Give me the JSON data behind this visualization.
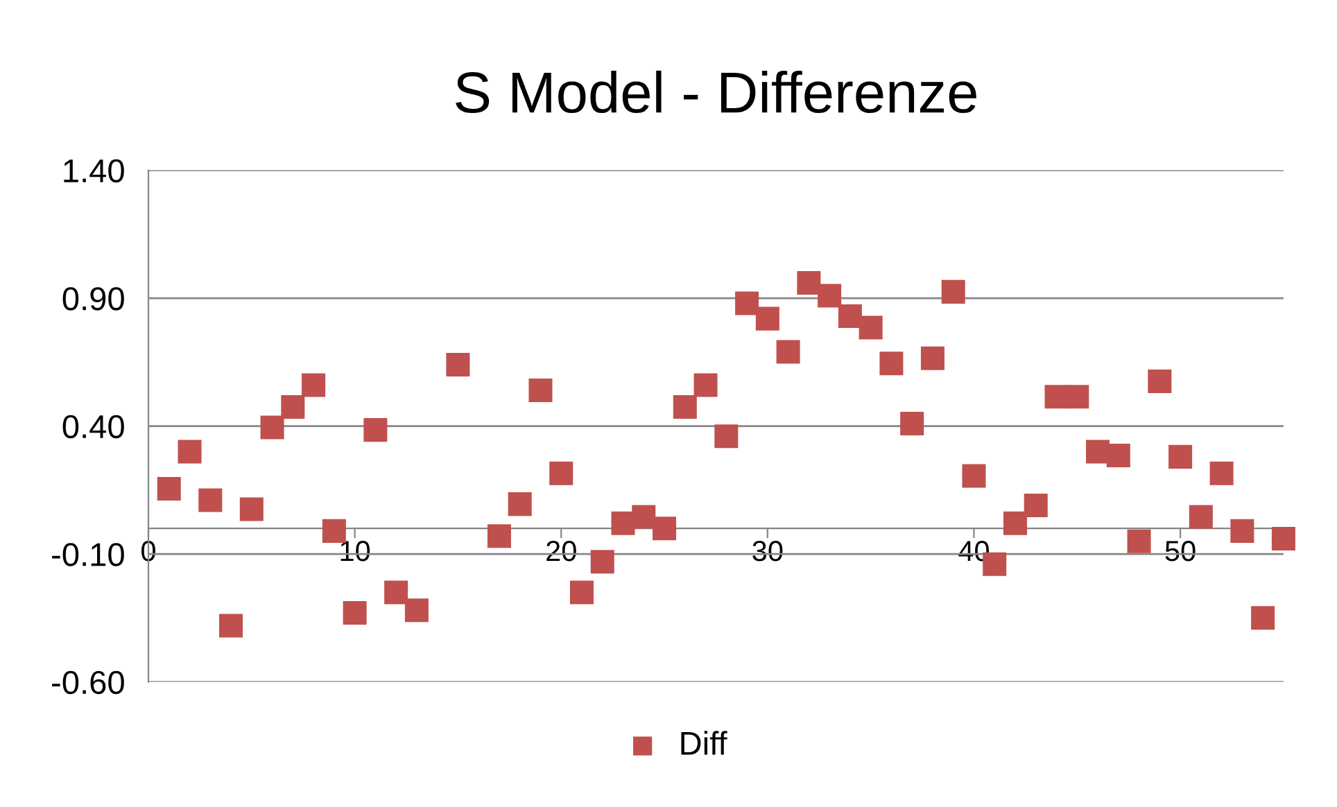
{
  "chart_data": {
    "type": "scatter",
    "title": "S Model - Differenze",
    "x": [
      1,
      2,
      3,
      4,
      5,
      6,
      7,
      8,
      9,
      10,
      11,
      12,
      13,
      15,
      17,
      18,
      19,
      20,
      21,
      22,
      23,
      24,
      25,
      26,
      27,
      28,
      29,
      30,
      31,
      32,
      33,
      34,
      35,
      36,
      37,
      38,
      39,
      40,
      41,
      42,
      43,
      44,
      45,
      46,
      47,
      48,
      49,
      50,
      51,
      52,
      53,
      54,
      55
    ],
    "series": [
      {
        "name": "Diff",
        "color": "#c0504d",
        "values": [
          0.155,
          0.3,
          0.11,
          -0.38,
          0.075,
          0.395,
          0.475,
          0.56,
          -0.01,
          -0.33,
          0.385,
          -0.25,
          -0.32,
          0.64,
          -0.03,
          0.095,
          0.54,
          0.215,
          -0.25,
          -0.13,
          0.02,
          0.045,
          0.0,
          0.475,
          0.56,
          0.36,
          0.88,
          0.82,
          0.69,
          0.96,
          0.91,
          0.83,
          0.785,
          0.645,
          0.41,
          0.665,
          0.925,
          0.205,
          -0.14,
          0.02,
          0.09,
          0.515,
          0.515,
          0.3,
          0.285,
          -0.05,
          0.575,
          0.28,
          0.045,
          0.215,
          -0.01,
          -0.35,
          -0.04
        ]
      }
    ],
    "xlim": [
      0,
      55
    ],
    "xticks": [
      0,
      10,
      20,
      30,
      40,
      50
    ],
    "ylim": [
      -0.6,
      1.4
    ],
    "yticks": [
      {
        "value": -0.6,
        "label": "-0.60"
      },
      {
        "value": -0.1,
        "label": "-0.10"
      },
      {
        "value": 0.4,
        "label": "0.40"
      },
      {
        "value": 0.9,
        "label": "0.90"
      },
      {
        "value": 1.4,
        "label": "1.40"
      }
    ],
    "grid": "y",
    "legend": "bottom",
    "marker": "square"
  }
}
